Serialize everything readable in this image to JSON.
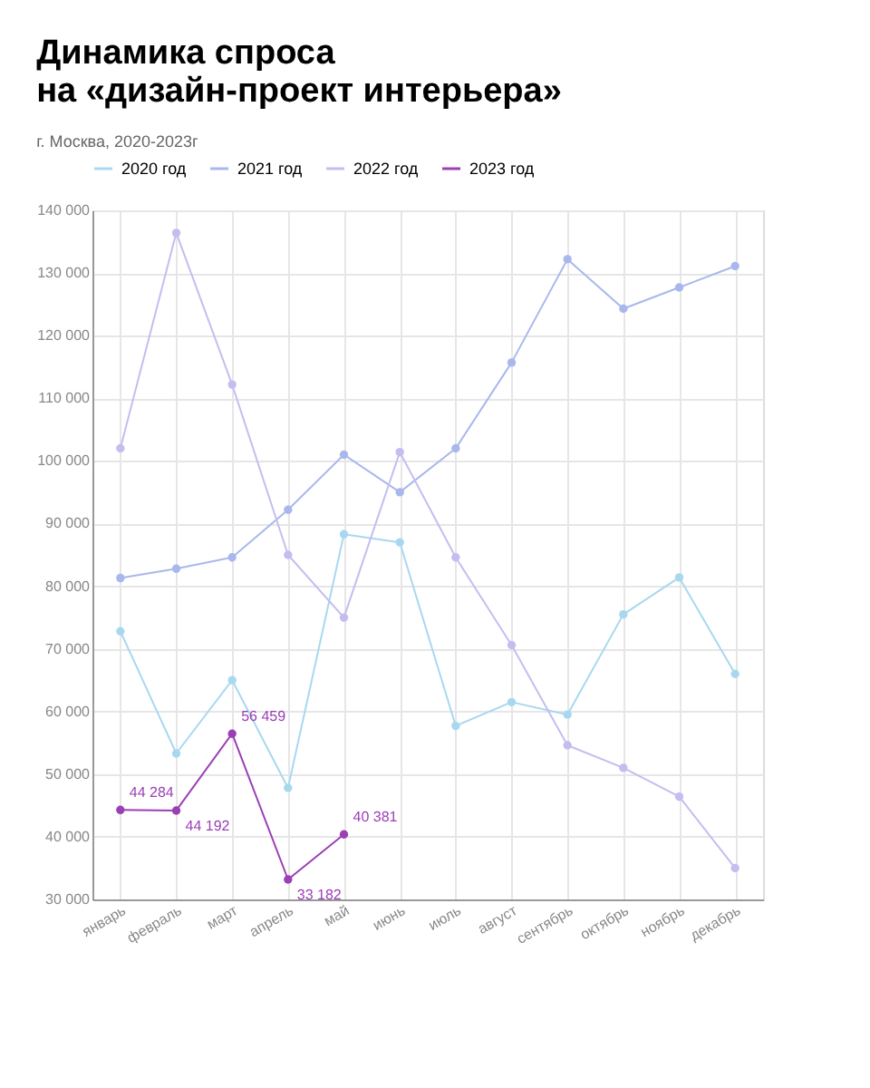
{
  "chart_data": {
    "type": "line",
    "title": "Динамика спроса\nна «дизайн-проект интерьера»",
    "subtitle": "г. Москва, 2020-2023г",
    "categories": [
      "январь",
      "февраль",
      "март",
      "апрель",
      "май",
      "июнь",
      "июль",
      "август",
      "сентябрь",
      "октябрь",
      "ноябрь",
      "декабрь"
    ],
    "series": [
      {
        "name": "2020 год",
        "color": "#a8d8f0",
        "values": [
          72800,
          53300,
          65000,
          47800,
          88300,
          87000,
          57700,
          61500,
          59500,
          75500,
          81400,
          66000
        ]
      },
      {
        "name": "2021 год",
        "color": "#a9b8ec",
        "values": [
          81300,
          82800,
          84600,
          92200,
          101000,
          95000,
          102000,
          115700,
          132200,
          124300,
          127700,
          131100
        ]
      },
      {
        "name": "2022 год",
        "color": "#c5bdf0",
        "values": [
          102000,
          136400,
          112200,
          85000,
          75000,
          101400,
          84600,
          70600,
          54600,
          51000,
          46400,
          35000
        ]
      },
      {
        "name": "2023 год",
        "color": "#9b3fb5",
        "values": [
          44284,
          44192,
          56459,
          33182,
          40381,
          null,
          null,
          null,
          null,
          null,
          null,
          null
        ],
        "value_labels": [
          "44 284",
          "44 192",
          "56 459",
          "33 182",
          "40 381",
          null,
          null,
          null,
          null,
          null,
          null,
          null
        ]
      }
    ],
    "ylim": [
      30000,
      140000
    ],
    "yticks": [
      {
        "value": 30000,
        "label": "30 000"
      },
      {
        "value": 40000,
        "label": "40 000"
      },
      {
        "value": 50000,
        "label": "50 000"
      },
      {
        "value": 60000,
        "label": "60 000"
      },
      {
        "value": 70000,
        "label": "70 000"
      },
      {
        "value": 80000,
        "label": "80 000"
      },
      {
        "value": 90000,
        "label": "90 000"
      },
      {
        "value": 100000,
        "label": "100 000"
      },
      {
        "value": 110000,
        "label": "110 000"
      },
      {
        "value": 120000,
        "label": "120 000"
      },
      {
        "value": 130000,
        "label": "130 000"
      },
      {
        "value": 140000,
        "label": "140 000"
      }
    ],
    "grid": true,
    "legend": "top",
    "marker": "circle",
    "line_style": "solid"
  }
}
